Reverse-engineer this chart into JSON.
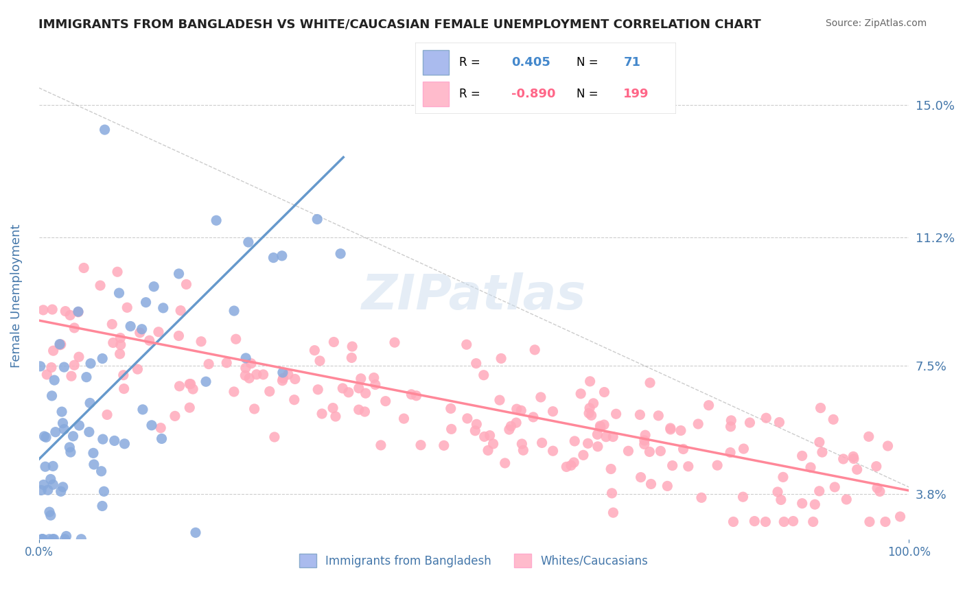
{
  "title": "IMMIGRANTS FROM BANGLADESH VS WHITE/CAUCASIAN FEMALE UNEMPLOYMENT CORRELATION CHART",
  "source_text": "Source: ZipAtlas.com",
  "ylabel": "Female Unemployment",
  "xlabel": "",
  "xlim": [
    0,
    100
  ],
  "ylim": [
    2.5,
    16.5
  ],
  "yticks": [
    3.8,
    7.5,
    11.2,
    15.0
  ],
  "xticks": [
    0,
    100
  ],
  "xtick_labels": [
    "0.0%",
    "100.0%"
  ],
  "ytick_labels": [
    "3.8%",
    "7.5%",
    "11.2%",
    "15.0%"
  ],
  "blue_R": 0.405,
  "blue_N": 71,
  "pink_R": -0.89,
  "pink_N": 199,
  "blue_color": "#6699CC",
  "pink_color": "#FF8899",
  "blue_scatter_color": "#88AADD",
  "pink_scatter_color": "#FFAABB",
  "legend_blue_label": "Immigrants from Bangladesh",
  "legend_pink_label": "Whites/Caucasians",
  "watermark": "ZIPatlas",
  "background_color": "#FFFFFF",
  "grid_color": "#CCCCCC",
  "title_color": "#222222",
  "axis_label_color": "#4477AA",
  "blue_trend_start_x": 0,
  "blue_trend_start_y": 4.8,
  "blue_trend_end_x": 35,
  "blue_trend_end_y": 13.5,
  "pink_trend_start_x": 0,
  "pink_trend_start_y": 8.8,
  "pink_trend_end_x": 100,
  "pink_trend_end_y": 3.9
}
